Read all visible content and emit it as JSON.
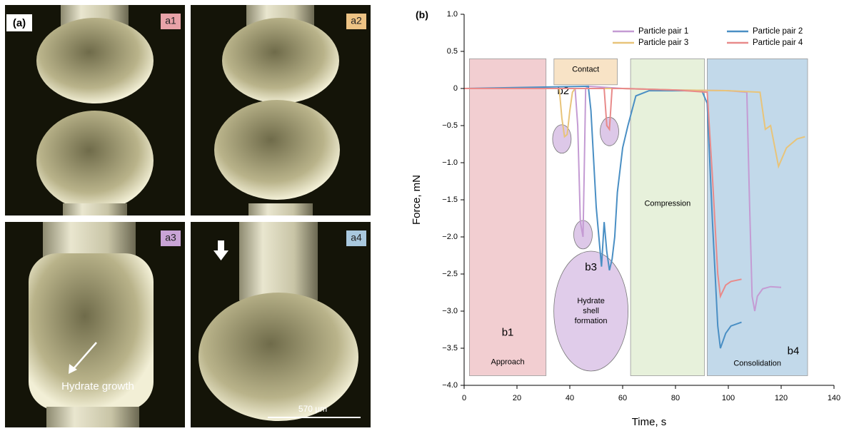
{
  "panel_a": {
    "label": "(a)",
    "images": [
      {
        "label": "a1",
        "color": "#e8a3a8"
      },
      {
        "label": "a2",
        "color": "#edc384"
      },
      {
        "label": "a3",
        "color": "#c9a4d6"
      },
      {
        "label": "a4",
        "color": "#a9c8de"
      }
    ],
    "annotation": "Hydrate growth",
    "scale_bar": "570 µm"
  },
  "chart_data": {
    "type": "line",
    "panel_label": "(b)",
    "x_label": "Time, s",
    "y_label": "Force, mN",
    "xlim": [
      0,
      140
    ],
    "xticks": [
      0,
      20,
      40,
      60,
      80,
      100,
      120,
      140
    ],
    "ylim": [
      -4,
      1
    ],
    "yticks": [
      {
        "value": -4,
        "label": "−4.0"
      },
      {
        "value": -3.5,
        "label": "−3.5"
      },
      {
        "value": -3,
        "label": "−3.0"
      },
      {
        "value": -2.5,
        "label": "−2.5"
      },
      {
        "value": -2,
        "label": "−2.0"
      },
      {
        "value": -1.5,
        "label": "−1.5"
      },
      {
        "value": -1,
        "label": "−1.0"
      },
      {
        "value": -0.5,
        "label": "−0.5"
      },
      0,
      0.5,
      {
        "value": 1,
        "label": "1.0"
      }
    ],
    "legend": "top-right",
    "regions": [
      {
        "name": "Approach",
        "tag": "b1",
        "x": [
          2,
          31
        ],
        "y": [
          -3.87,
          0.4
        ],
        "color": "#e8a5ab"
      },
      {
        "name": "Contact",
        "tag": "b2",
        "x": [
          34,
          58
        ],
        "y": [
          0.05,
          0.4
        ],
        "color": "#f3cc97"
      },
      {
        "name": "Compression",
        "x": [
          63,
          91
        ],
        "y": [
          -3.87,
          0.4
        ],
        "color": "#d3e5bd"
      },
      {
        "name": "Consolidation",
        "tag": "b4",
        "x": [
          92,
          130
        ],
        "y": [
          -3.87,
          0.4
        ],
        "color": "#8fbad9"
      }
    ],
    "highlights": [
      {
        "x": 37,
        "y": -0.68
      },
      {
        "x": 45,
        "y": -1.97
      },
      {
        "x": 55,
        "y": -0.58
      }
    ],
    "annotation": {
      "tag": "b3",
      "text": [
        "Hydrate",
        "shell",
        "formation"
      ],
      "x": 48,
      "y": -3.0
    },
    "series": [
      {
        "name": "Particle pair 1",
        "color": "#c49bd3",
        "x": [
          0,
          42,
          43,
          44,
          45,
          45.5,
          46,
          47,
          60,
          80,
          100,
          107,
          108,
          109,
          110,
          111,
          113,
          116,
          120
        ],
        "values": [
          0,
          0,
          -0.5,
          -1.8,
          -2.0,
          -1.0,
          0,
          0.03,
          0,
          -0.02,
          -0.03,
          -0.05,
          -1.5,
          -2.8,
          -3.0,
          -2.8,
          -2.7,
          -2.67,
          -2.68
        ]
      },
      {
        "name": "Particle pair 2",
        "color": "#4a8fc4",
        "x": [
          0,
          47,
          48,
          50,
          52,
          53,
          54,
          55,
          56,
          57,
          58,
          60,
          62,
          65,
          70,
          80,
          90,
          92,
          94,
          96,
          97,
          99,
          101,
          105
        ],
        "values": [
          0,
          0.03,
          -0.3,
          -1.6,
          -2.4,
          -1.8,
          -2.2,
          -2.45,
          -2.3,
          -2.0,
          -1.4,
          -0.8,
          -0.5,
          -0.1,
          -0.03,
          -0.03,
          -0.03,
          -0.2,
          -1.8,
          -3.2,
          -3.5,
          -3.3,
          -3.2,
          -3.15
        ]
      },
      {
        "name": "Particle pair 3",
        "color": "#e8c47a",
        "x": [
          0,
          36,
          37,
          38,
          39,
          40,
          41,
          42,
          60,
          80,
          100,
          112,
          114,
          116,
          119,
          122,
          126,
          129
        ],
        "values": [
          0,
          0,
          -0.4,
          -0.65,
          -0.62,
          -0.3,
          -0.05,
          0,
          0,
          -0.02,
          -0.03,
          -0.05,
          -0.55,
          -0.5,
          -1.05,
          -0.8,
          -0.68,
          -0.65
        ]
      },
      {
        "name": "Particle pair 4",
        "color": "#e88a8a",
        "x": [
          0,
          53,
          54,
          55,
          56,
          60,
          80,
          92,
          94,
          96,
          97,
          99,
          101,
          105
        ],
        "values": [
          0,
          0,
          -0.5,
          -0.55,
          0,
          0,
          -0.02,
          -0.05,
          -1.2,
          -2.5,
          -2.8,
          -2.65,
          -2.6,
          -2.57
        ]
      }
    ]
  }
}
